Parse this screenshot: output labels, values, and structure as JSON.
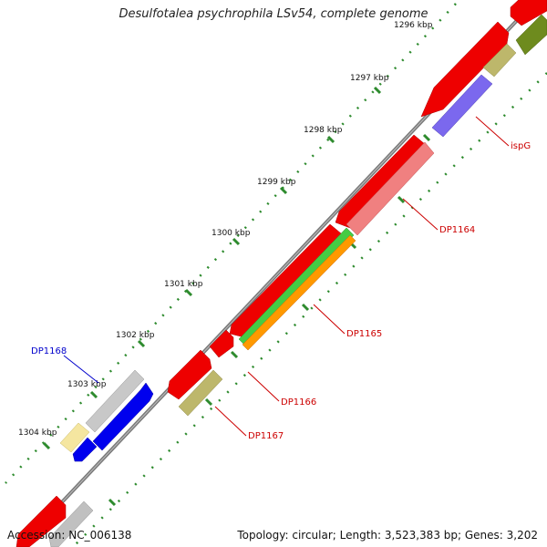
{
  "title": "Desulfotalea psychrophila LSv54, complete genome",
  "accession_text": "Accession: NC_006138",
  "summary_text": "Topology: circular; Length: 3,523,383 bp; Genes: 3,202",
  "colors": {
    "backbone": "#7a7a7a",
    "tick": "#2e8b2e",
    "label_red": "#cc0000",
    "label_blue": "#0000cc"
  },
  "ticks": [
    "1296 kbp",
    "1297 kbp",
    "1298 kbp",
    "1299 kbp",
    "1300 kbp",
    "1301 kbp",
    "1302 kbp",
    "1303 kbp",
    "1304 kbp"
  ],
  "gene_labels": [
    {
      "id": "ispG",
      "text": "ispG",
      "color": "#cc0000"
    },
    {
      "id": "DP1164",
      "text": "DP1164",
      "color": "#cc0000"
    },
    {
      "id": "DP1165",
      "text": "DP1165",
      "color": "#cc0000"
    },
    {
      "id": "DP1166",
      "text": "DP1166",
      "color": "#cc0000"
    },
    {
      "id": "DP1167",
      "text": "DP1167",
      "color": "#cc0000"
    },
    {
      "id": "DP1168",
      "text": "DP1168",
      "color": "#0000cc"
    }
  ]
}
